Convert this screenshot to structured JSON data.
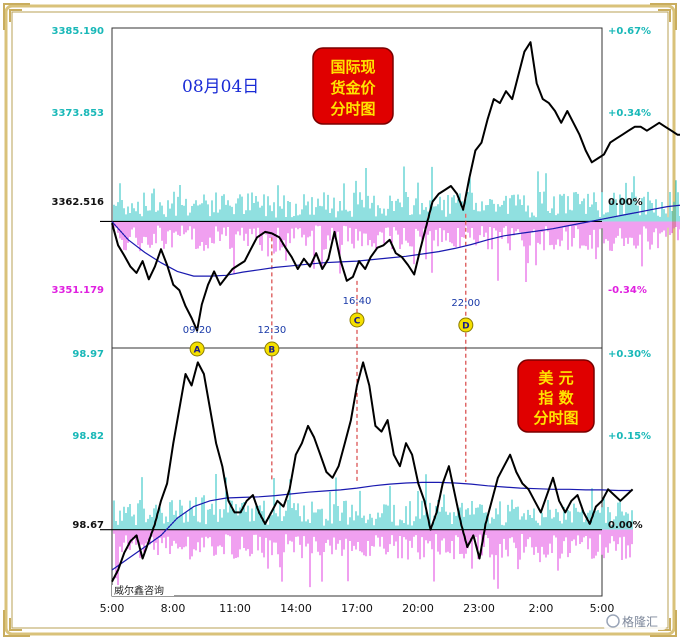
{
  "chart_data": [
    {
      "type": "line",
      "title": "国际现货金价分时图",
      "title_lines": [
        "国际现",
        "货金价",
        "分时图"
      ],
      "date_label": "08月04日",
      "y_left_ticks": [
        "3385.190",
        "3373.853",
        "3362.516",
        "3351.179"
      ],
      "y_right_ticks": [
        "+0.67%",
        "+0.34%",
        "0.00%",
        "-0.34%"
      ],
      "ylim": [
        3346.5,
        3387.0
      ],
      "reference": 3362.516,
      "price_series": [
        [
          0,
          3362.3
        ],
        [
          0.3,
          3359.5
        ],
        [
          0.6,
          3358.2
        ],
        [
          0.9,
          3356.8
        ],
        [
          1.2,
          3356.0
        ],
        [
          1.5,
          3357.5
        ],
        [
          1.8,
          3355.2
        ],
        [
          2.1,
          3356.8
        ],
        [
          2.4,
          3359.0
        ],
        [
          2.7,
          3357.0
        ],
        [
          3.0,
          3354.5
        ],
        [
          3.3,
          3353.8
        ],
        [
          3.6,
          3351.8
        ],
        [
          3.9,
          3350.3
        ],
        [
          4.17,
          3348.7
        ],
        [
          4.4,
          3352.0
        ],
        [
          4.7,
          3354.5
        ],
        [
          5.0,
          3356.2
        ],
        [
          5.3,
          3354.5
        ],
        [
          5.6,
          3355.5
        ],
        [
          5.9,
          3356.5
        ],
        [
          6.2,
          3357.0
        ],
        [
          6.5,
          3357.5
        ],
        [
          6.8,
          3359.0
        ],
        [
          7.1,
          3360.5
        ],
        [
          7.5,
          3361.2
        ],
        [
          7.83,
          3361.0
        ],
        [
          8.2,
          3360.5
        ],
        [
          8.5,
          3359.2
        ],
        [
          8.8,
          3358.0
        ],
        [
          9.1,
          3356.5
        ],
        [
          9.4,
          3357.8
        ],
        [
          9.7,
          3356.8
        ],
        [
          10.0,
          3358.5
        ],
        [
          10.3,
          3356.5
        ],
        [
          10.6,
          3357.8
        ],
        [
          10.9,
          3361.2
        ],
        [
          11.2,
          3357.5
        ],
        [
          11.5,
          3355.0
        ],
        [
          11.8,
          3355.5
        ],
        [
          12.1,
          3357.5
        ],
        [
          12.4,
          3356.5
        ],
        [
          12.67,
          3358.0
        ],
        [
          13.0,
          3359.2
        ],
        [
          13.3,
          3359.5
        ],
        [
          13.6,
          3360.2
        ],
        [
          13.9,
          3358.5
        ],
        [
          14.2,
          3358.0
        ],
        [
          14.5,
          3357.0
        ],
        [
          14.8,
          3355.8
        ],
        [
          15.1,
          3359.0
        ],
        [
          15.4,
          3362.0
        ],
        [
          15.7,
          3365.0
        ],
        [
          16.0,
          3366.0
        ],
        [
          16.3,
          3366.5
        ],
        [
          16.6,
          3367.0
        ],
        [
          16.9,
          3366.0
        ],
        [
          17.2,
          3364.0
        ],
        [
          17.5,
          3368.0
        ],
        [
          17.8,
          3371.5
        ],
        [
          18.1,
          3372.5
        ],
        [
          18.4,
          3375.5
        ],
        [
          18.7,
          3378.0
        ],
        [
          19.0,
          3377.5
        ],
        [
          19.3,
          3379.0
        ],
        [
          19.6,
          3378.0
        ],
        [
          19.9,
          3381.0
        ],
        [
          20.2,
          3384.0
        ],
        [
          20.5,
          3385.2
        ],
        [
          20.8,
          3380.0
        ],
        [
          21.1,
          3378.0
        ],
        [
          21.4,
          3377.5
        ],
        [
          21.7,
          3376.5
        ],
        [
          22.0,
          3375.0
        ],
        [
          22.3,
          3376.5
        ],
        [
          22.6,
          3375.0
        ],
        [
          22.9,
          3373.5
        ],
        [
          23.2,
          3371.5
        ],
        [
          23.5,
          3370.0
        ],
        [
          23.8,
          3370.5
        ],
        [
          24.1,
          3371.0
        ],
        [
          24.4,
          3372.5
        ],
        [
          24.7,
          3373.0
        ],
        [
          25.0,
          3373.5
        ],
        [
          25.3,
          3374.0
        ],
        [
          25.6,
          3374.5
        ],
        [
          25.9,
          3374.5
        ],
        [
          26.2,
          3374.0
        ],
        [
          26.5,
          3374.5
        ],
        [
          26.8,
          3375.0
        ],
        [
          27.1,
          3374.5
        ],
        [
          27.4,
          3374.0
        ],
        [
          27.7,
          3373.5
        ],
        [
          28.0,
          3373.5
        ],
        [
          28.3,
          3372.5
        ]
      ],
      "avg_series": [
        [
          0,
          3362.5
        ],
        [
          0.8,
          3360.2
        ],
        [
          1.6,
          3358.6
        ],
        [
          2.4,
          3357.3
        ],
        [
          3.2,
          3356.2
        ],
        [
          4.0,
          3355.6
        ],
        [
          4.8,
          3355.6
        ],
        [
          5.6,
          3355.7
        ],
        [
          6.4,
          3356.1
        ],
        [
          7.2,
          3356.4
        ],
        [
          8.0,
          3356.7
        ],
        [
          8.8,
          3356.9
        ],
        [
          9.6,
          3357.1
        ],
        [
          10.4,
          3357.3
        ],
        [
          11.2,
          3357.4
        ],
        [
          12.0,
          3357.5
        ],
        [
          12.8,
          3357.7
        ],
        [
          13.6,
          3357.9
        ],
        [
          14.4,
          3358.1
        ],
        [
          15.2,
          3358.4
        ],
        [
          16.0,
          3358.7
        ],
        [
          16.8,
          3359.1
        ],
        [
          17.6,
          3359.6
        ],
        [
          18.4,
          3360.2
        ],
        [
          19.2,
          3360.7
        ],
        [
          20.0,
          3361.0
        ],
        [
          20.8,
          3361.3
        ],
        [
          21.6,
          3361.6
        ],
        [
          22.4,
          3362.0
        ],
        [
          23.2,
          3362.4
        ],
        [
          24.0,
          3362.8
        ],
        [
          24.8,
          3363.2
        ],
        [
          25.6,
          3363.6
        ],
        [
          26.4,
          3364.0
        ],
        [
          27.2,
          3364.4
        ],
        [
          28.3,
          3364.7
        ]
      ],
      "events": [
        {
          "id": "A",
          "time": "09:20",
          "hours": 4.17
        },
        {
          "id": "B",
          "time": "12:30",
          "hours": 7.83
        },
        {
          "id": "C",
          "time": "16:40",
          "hours": 12.0
        },
        {
          "id": "D",
          "time": "22:00",
          "hours": 17.33
        }
      ],
      "colors": {
        "price": "#000000",
        "avg": "#1a1ab0",
        "vol_up": "#20c0c0",
        "vol_down": "#e040e0",
        "event_line": "#d02020"
      }
    },
    {
      "type": "line",
      "title": "美元指数分时图",
      "title_lines": [
        "美  元",
        "指  数",
        "分时图"
      ],
      "y_left_ticks": [
        "98.97",
        "98.82",
        "98.67"
      ],
      "y_right_ticks": [
        "+0.30%",
        "+0.15%",
        "0.00%"
      ],
      "ylim": [
        98.555,
        98.985
      ],
      "reference": 98.67,
      "price_series": [
        [
          0,
          98.58
        ],
        [
          0.3,
          98.6
        ],
        [
          0.6,
          98.63
        ],
        [
          0.9,
          98.65
        ],
        [
          1.2,
          98.66
        ],
        [
          1.5,
          98.62
        ],
        [
          1.8,
          98.65
        ],
        [
          2.1,
          98.68
        ],
        [
          2.4,
          98.72
        ],
        [
          2.7,
          98.75
        ],
        [
          3.0,
          98.82
        ],
        [
          3.3,
          98.88
        ],
        [
          3.6,
          98.94
        ],
        [
          3.9,
          98.92
        ],
        [
          4.2,
          98.96
        ],
        [
          4.5,
          98.94
        ],
        [
          4.8,
          98.88
        ],
        [
          5.1,
          98.82
        ],
        [
          5.4,
          98.78
        ],
        [
          5.7,
          98.72
        ],
        [
          6.0,
          98.7
        ],
        [
          6.3,
          98.7
        ],
        [
          6.6,
          98.72
        ],
        [
          6.9,
          98.73
        ],
        [
          7.2,
          98.7
        ],
        [
          7.5,
          98.68
        ],
        [
          7.8,
          98.7
        ],
        [
          8.1,
          98.72
        ],
        [
          8.4,
          98.71
        ],
        [
          8.7,
          98.74
        ],
        [
          9.0,
          98.8
        ],
        [
          9.3,
          98.82
        ],
        [
          9.6,
          98.85
        ],
        [
          9.9,
          98.83
        ],
        [
          10.2,
          98.8
        ],
        [
          10.5,
          98.77
        ],
        [
          10.8,
          98.76
        ],
        [
          11.1,
          98.78
        ],
        [
          11.4,
          98.82
        ],
        [
          11.7,
          98.86
        ],
        [
          12.0,
          98.92
        ],
        [
          12.3,
          98.96
        ],
        [
          12.6,
          98.92
        ],
        [
          12.9,
          98.85
        ],
        [
          13.2,
          98.84
        ],
        [
          13.5,
          98.86
        ],
        [
          13.8,
          98.8
        ],
        [
          14.1,
          98.78
        ],
        [
          14.4,
          98.82
        ],
        [
          14.7,
          98.8
        ],
        [
          15.0,
          98.75
        ],
        [
          15.3,
          98.72
        ],
        [
          15.6,
          98.67
        ],
        [
          15.9,
          98.7
        ],
        [
          16.2,
          98.75
        ],
        [
          16.5,
          98.78
        ],
        [
          16.8,
          98.73
        ],
        [
          17.1,
          98.68
        ],
        [
          17.4,
          98.64
        ],
        [
          17.7,
          98.66
        ],
        [
          18.0,
          98.62
        ],
        [
          18.3,
          98.68
        ],
        [
          18.6,
          98.72
        ],
        [
          18.9,
          98.76
        ],
        [
          19.2,
          98.78
        ],
        [
          19.5,
          98.8
        ],
        [
          19.8,
          98.77
        ],
        [
          20.1,
          98.75
        ],
        [
          20.4,
          98.74
        ],
        [
          20.7,
          98.72
        ],
        [
          21.0,
          98.7
        ],
        [
          21.3,
          98.73
        ],
        [
          21.6,
          98.76
        ],
        [
          21.9,
          98.72
        ],
        [
          22.2,
          98.7
        ],
        [
          22.5,
          98.72
        ],
        [
          22.8,
          98.73
        ],
        [
          23.1,
          98.7
        ],
        [
          23.4,
          98.68
        ],
        [
          23.7,
          98.71
        ],
        [
          24.0,
          98.72
        ],
        [
          24.3,
          98.74
        ],
        [
          24.6,
          98.73
        ],
        [
          24.9,
          98.72
        ],
        [
          25.2,
          98.73
        ],
        [
          25.5,
          98.74
        ]
      ],
      "avg_series": [
        [
          0,
          98.6
        ],
        [
          0.8,
          98.62
        ],
        [
          1.6,
          98.64
        ],
        [
          2.4,
          98.66
        ],
        [
          3.2,
          98.69
        ],
        [
          4.0,
          98.71
        ],
        [
          4.8,
          98.72
        ],
        [
          5.6,
          98.725
        ],
        [
          6.4,
          98.726
        ],
        [
          7.2,
          98.727
        ],
        [
          8.0,
          98.729
        ],
        [
          8.8,
          98.732
        ],
        [
          9.6,
          98.735
        ],
        [
          10.4,
          98.737
        ],
        [
          11.2,
          98.739
        ],
        [
          12.0,
          98.742
        ],
        [
          12.8,
          98.746
        ],
        [
          13.6,
          98.749
        ],
        [
          14.4,
          98.751
        ],
        [
          15.2,
          98.752
        ],
        [
          16.0,
          98.752
        ],
        [
          16.8,
          98.751
        ],
        [
          17.6,
          98.749
        ],
        [
          18.4,
          98.746
        ],
        [
          19.2,
          98.744
        ],
        [
          20.0,
          98.742
        ],
        [
          20.8,
          98.741
        ],
        [
          21.6,
          98.74
        ],
        [
          22.4,
          98.74
        ],
        [
          23.2,
          98.739
        ],
        [
          24.0,
          98.739
        ],
        [
          24.8,
          98.738
        ],
        [
          25.5,
          98.738
        ]
      ],
      "colors": {
        "price": "#000000",
        "avg": "#1a1ab0",
        "vol_up": "#20c0c0",
        "vol_down": "#e040e0",
        "event_line": "#d02020"
      }
    }
  ],
  "x_ticks": [
    "5:00",
    "8:00",
    "11:00",
    "14:00",
    "17:00",
    "20:00",
    "23:00",
    "2:00",
    "5:00"
  ],
  "x_range_hours": [
    0,
    24
  ],
  "watermark": "威尔鑫咨询",
  "brand": "格隆汇",
  "colors": {
    "tick_cyan": "#19b8b8",
    "tick_magenta": "#e020e0",
    "tick_black": "#111111",
    "title_red": "#e00000",
    "title_yellow": "#ffe400",
    "frame_gold": "#d9c27a"
  }
}
